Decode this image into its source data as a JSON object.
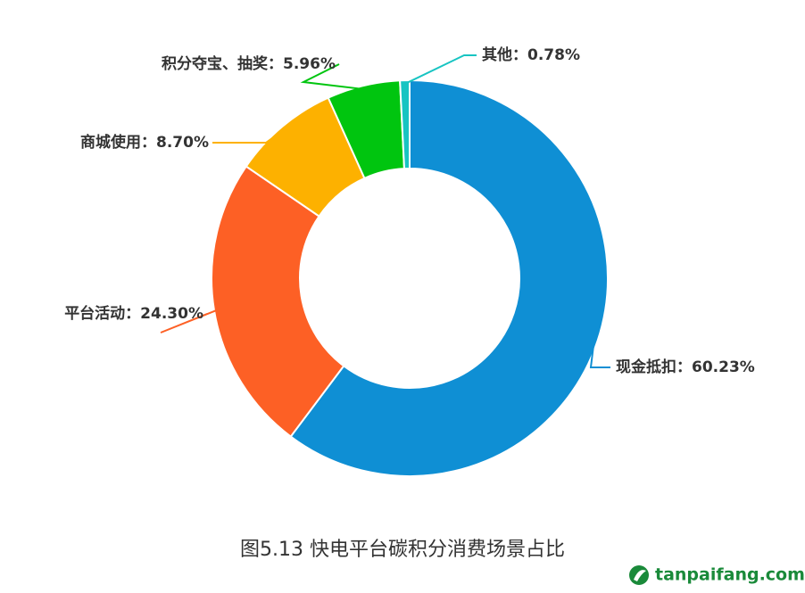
{
  "chart_data": {
    "type": "donut",
    "caption": "图5.13 快电平台碳积分消费场景占比",
    "watermark": "tanpaifang.com",
    "values": [
      60.23,
      24.3,
      8.7,
      5.96,
      0.78
    ],
    "value_labels": [
      "现金抵扣：60.23%",
      "平台活动：24.30%",
      "商城使用：8.70%",
      "积分夺宝、抽奖：5.96%",
      "其他：0.78%"
    ],
    "colors": [
      "#0f8fd4",
      "#fd6025",
      "#fdb100",
      "#00c50f",
      "#17c4c2"
    ]
  }
}
